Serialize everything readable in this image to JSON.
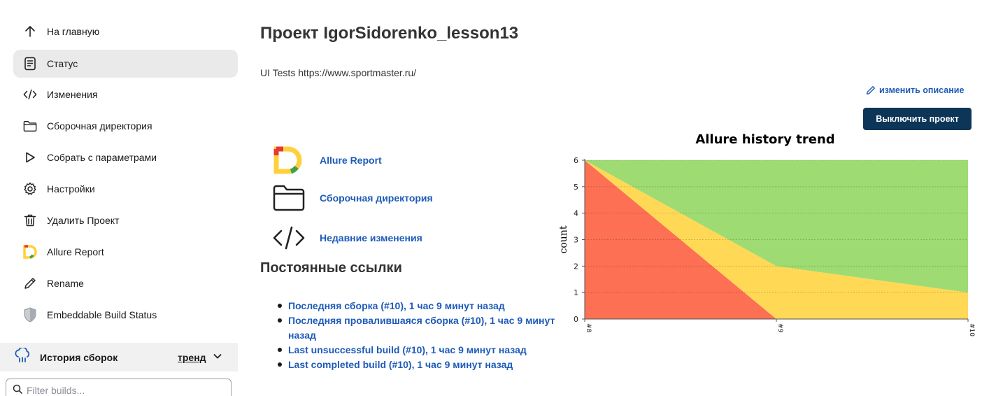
{
  "sidebar": {
    "items": [
      {
        "label": "На главную",
        "icon": "arrow-up-icon"
      },
      {
        "label": "Статус",
        "icon": "document-icon",
        "active": true
      },
      {
        "label": "Изменения",
        "icon": "code-icon"
      },
      {
        "label": "Сборочная директория",
        "icon": "folder-icon"
      },
      {
        "label": "Собрать с параметрами",
        "icon": "play-icon"
      },
      {
        "label": "Настройки",
        "icon": "gear-icon"
      },
      {
        "label": "Удалить Проект",
        "icon": "trash-icon"
      },
      {
        "label": "Allure Report",
        "icon": "allure-icon"
      },
      {
        "label": "Rename",
        "icon": "pencil-icon"
      },
      {
        "label": "Embeddable Build Status",
        "icon": "shield-icon"
      }
    ],
    "history": {
      "label": "История сборок",
      "trend": "тренд",
      "icon": "cloud-rain-icon"
    },
    "filter_placeholder": "Filter builds..."
  },
  "main": {
    "title": "Проект IgorSidorenko_lesson13",
    "description": "UI Tests https://www.sportmaster.ru/",
    "edit_description": "изменить описание",
    "disable_button": "Выключить проект",
    "links": [
      {
        "label": "Allure Report",
        "icon": "allure-icon"
      },
      {
        "label": "Сборочная директория",
        "icon": "folder-icon"
      },
      {
        "label": "Недавние изменения",
        "icon": "code-icon"
      }
    ],
    "permalinks_title": "Постоянные ссылки",
    "permalinks": [
      "Последняя сборка (#10), 1 час 9 минут назад",
      "Последняя провалившаяся сборка (#10), 1 час 9 минут назад",
      "Last unsuccessful build (#10), 1 час 9 минут назад",
      "Last completed build (#10), 1 час 9 минут назад"
    ]
  },
  "colors": {
    "link": "#1e5bb8",
    "button": "#0d3558",
    "failed": "#fd7053",
    "broken": "#ffd955",
    "passed": "#9edb72"
  },
  "chart_data": {
    "type": "area",
    "title": "Allure history trend",
    "ylabel": "count",
    "xlabel": "",
    "x": [
      "#8",
      "#9",
      "#10"
    ],
    "ylim": [
      0,
      6
    ],
    "yticks": [
      "0",
      "1",
      "2",
      "3",
      "4",
      "5",
      "6"
    ],
    "stacked": true,
    "series": [
      {
        "values": [
          6,
          0,
          0
        ],
        "color": "#fd7053"
      },
      {
        "values": [
          0,
          2,
          1
        ],
        "color": "#ffd955"
      },
      {
        "values": [
          0,
          4,
          5
        ],
        "color": "#9edb72"
      }
    ],
    "grid": true
  }
}
